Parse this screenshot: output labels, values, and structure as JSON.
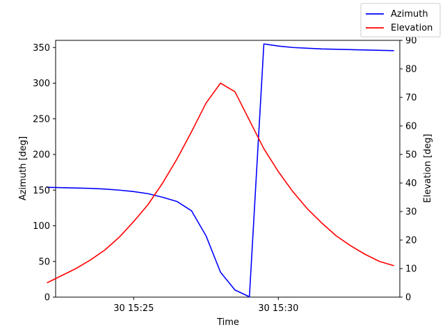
{
  "chart_data": {
    "type": "line",
    "xlabel": "Time",
    "ylabel_left": "Azimuth [deg]",
    "ylabel_right": "Elevation [deg]",
    "x_unit": "minutes after 15:20 on day 30",
    "xlim": [
      22.3,
      34.2
    ],
    "ylim_left": [
      0,
      360
    ],
    "ylim_right": [
      0,
      90
    ],
    "x_ticks": [
      {
        "value": 25,
        "label": "30 15:25"
      },
      {
        "value": 30,
        "label": "30 15:30"
      }
    ],
    "y_ticks_left": [
      0,
      50,
      100,
      150,
      200,
      250,
      300,
      350
    ],
    "y_ticks_right": [
      0,
      10,
      20,
      30,
      40,
      50,
      60,
      70,
      80,
      90
    ],
    "legend_position": "top-right",
    "grid": false,
    "series": [
      {
        "name": "Azimuth",
        "axis": "left",
        "color": "#0000ff",
        "x": [
          22.0,
          22.5,
          23.0,
          23.5,
          24.0,
          24.5,
          25.0,
          25.5,
          26.0,
          26.5,
          27.0,
          27.5,
          28.0,
          28.5,
          29.0,
          29.5,
          30.0,
          30.5,
          31.0,
          31.5,
          32.0,
          32.5,
          33.0,
          33.5,
          34.0
        ],
        "y": [
          154,
          153.5,
          153,
          152.5,
          151.5,
          150,
          148,
          145,
          140,
          134,
          121,
          86,
          35,
          10,
          0.5,
          355,
          352,
          350,
          349,
          348,
          347.5,
          347,
          346.5,
          346,
          345.5
        ]
      },
      {
        "name": "Elevation",
        "axis": "right",
        "color": "#ff0000",
        "x": [
          22.0,
          22.5,
          23.0,
          23.5,
          24.0,
          24.5,
          25.0,
          25.5,
          26.0,
          26.5,
          27.0,
          27.5,
          28.0,
          28.5,
          29.0,
          29.5,
          30.0,
          30.5,
          31.0,
          31.5,
          32.0,
          32.5,
          33.0,
          33.5,
          34.0
        ],
        "y": [
          5,
          7.5,
          10,
          13,
          16.5,
          21,
          26.5,
          32.5,
          40,
          48.5,
          58,
          68,
          75,
          72,
          62,
          52,
          44,
          37,
          31,
          26,
          21.5,
          18,
          15,
          12.5,
          11
        ]
      }
    ]
  }
}
